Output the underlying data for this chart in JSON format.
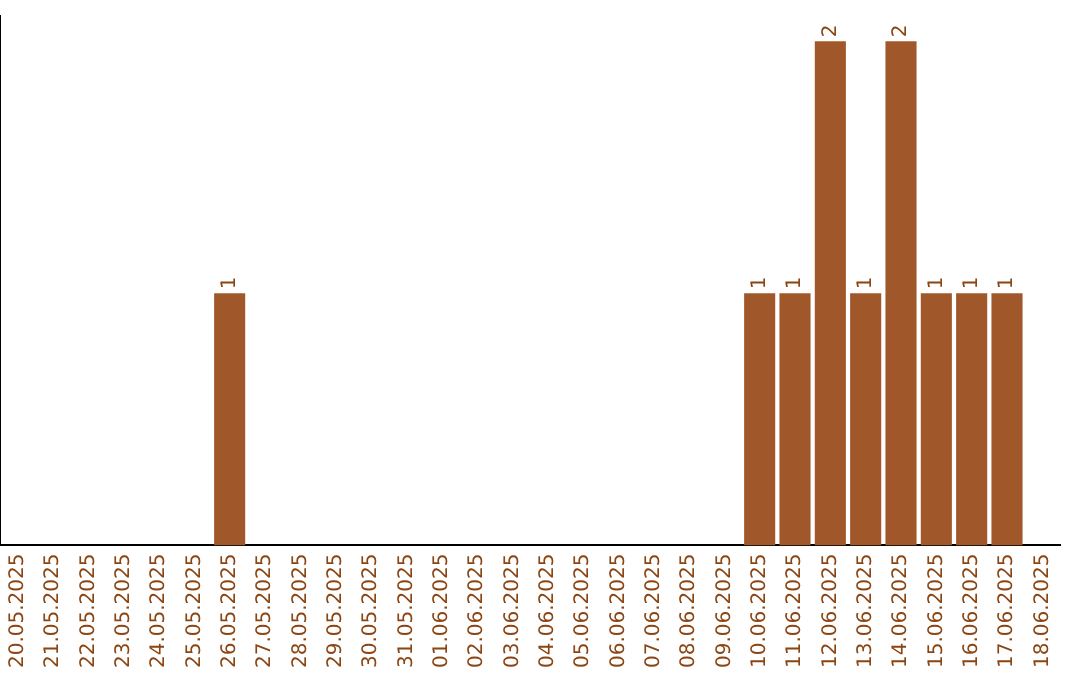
{
  "chart_data": {
    "type": "bar",
    "categories": [
      "20.05.2025",
      "21.05.2025",
      "22.05.2025",
      "23.05.2025",
      "24.05.2025",
      "25.05.2025",
      "26.05.2025",
      "27.05.2025",
      "28.05.2025",
      "29.05.2025",
      "30.05.2025",
      "31.05.2025",
      "01.06.2025",
      "02.06.2025",
      "03.06.2025",
      "04.06.2025",
      "05.06.2025",
      "06.06.2025",
      "07.06.2025",
      "08.06.2025",
      "09.06.2025",
      "10.06.2025",
      "11.06.2025",
      "12.06.2025",
      "13.06.2025",
      "14.06.2025",
      "15.06.2025",
      "16.06.2025",
      "17.06.2025",
      "18.06.2025"
    ],
    "values": [
      0,
      0,
      0,
      0,
      0,
      0,
      1,
      0,
      0,
      0,
      0,
      0,
      0,
      0,
      0,
      0,
      0,
      0,
      0,
      0,
      0,
      1,
      1,
      2,
      1,
      2,
      1,
      1,
      1,
      0
    ],
    "value_labels": [
      null,
      null,
      null,
      null,
      null,
      null,
      "1",
      null,
      null,
      null,
      null,
      null,
      null,
      null,
      null,
      null,
      null,
      null,
      null,
      null,
      null,
      "1",
      "1",
      "2",
      "1",
      "2",
      "1",
      "1",
      "1",
      null
    ],
    "color": "#a0572a",
    "ylim": [
      0,
      2.1
    ],
    "tick_labels": "x",
    "grid": false,
    "legend": false
  }
}
